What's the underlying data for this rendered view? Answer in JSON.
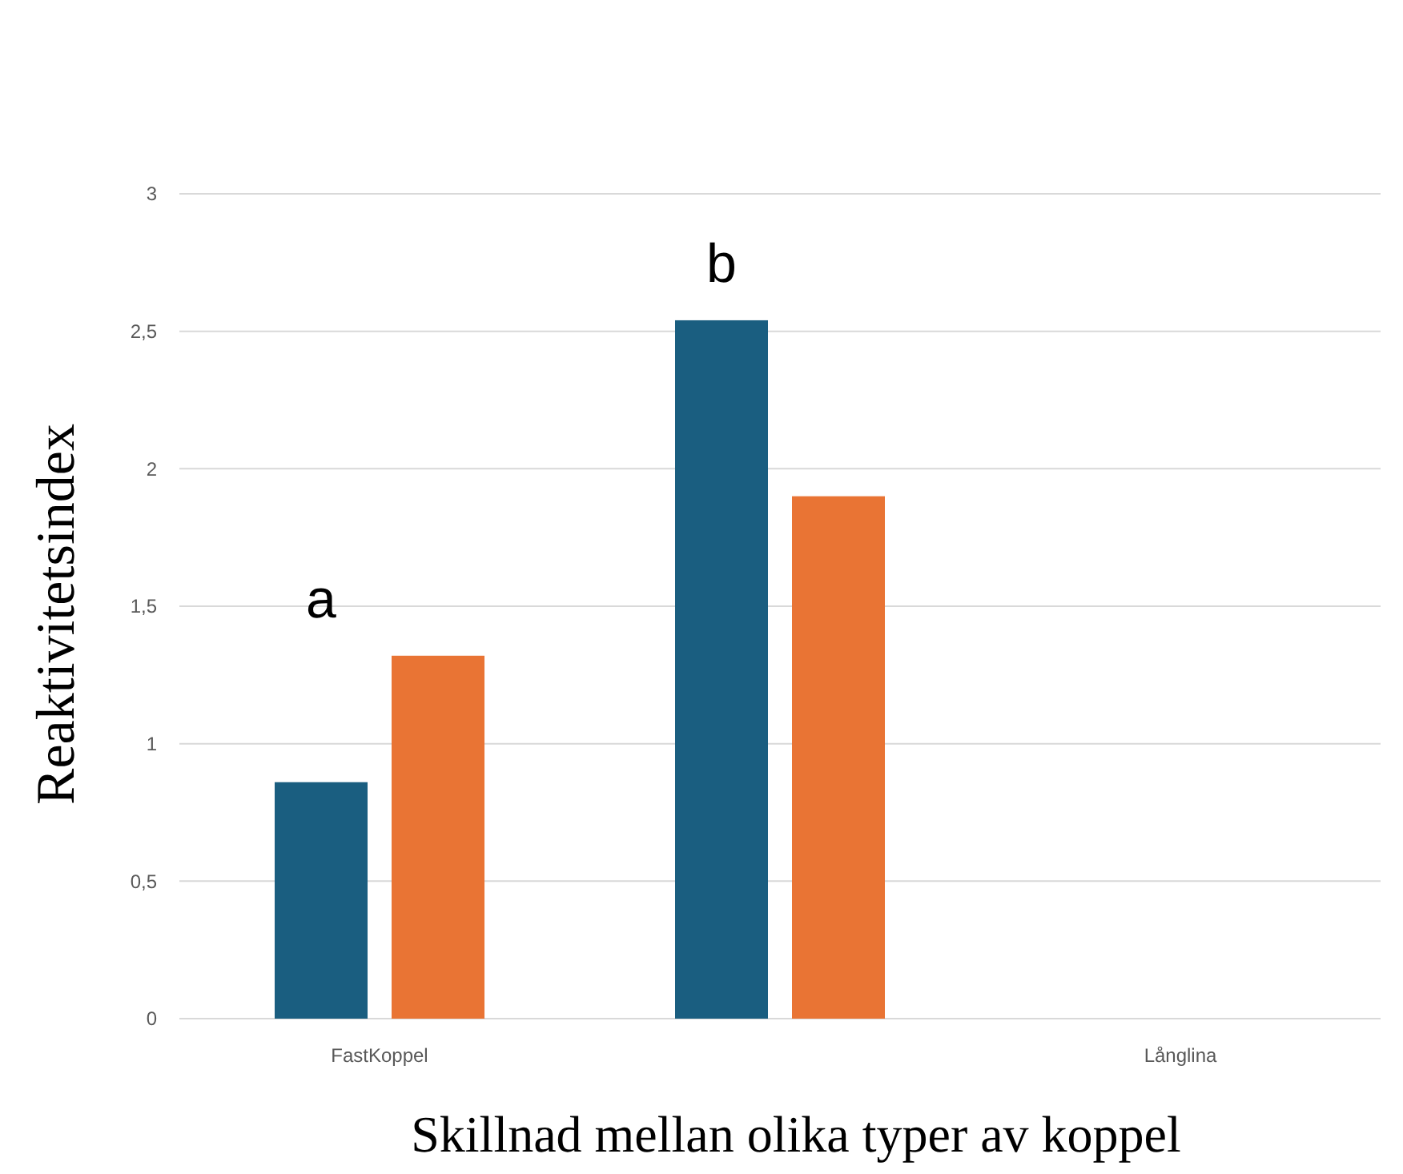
{
  "chart_data": {
    "type": "bar",
    "xlabel": "Skillnad mellan olika typer av koppel",
    "ylabel": "Reaktivitetsindex",
    "categories": [
      "FastKoppel",
      null,
      "Långlina"
    ],
    "series": [
      {
        "color": "#1a5e80",
        "values": [
          0.86,
          2.54,
          null
        ]
      },
      {
        "color": "#e97434",
        "values": [
          1.32,
          1.9,
          null
        ]
      }
    ],
    "ylim": [
      0,
      3
    ],
    "yticks": [
      0,
      {
        "value": 0.5,
        "label": "0,5"
      },
      1,
      {
        "value": 1.5,
        "label": "1,5"
      },
      2,
      {
        "value": 2.5,
        "label": "2,5"
      },
      3
    ],
    "grid": "y",
    "annotations": [
      "a",
      "b"
    ]
  }
}
